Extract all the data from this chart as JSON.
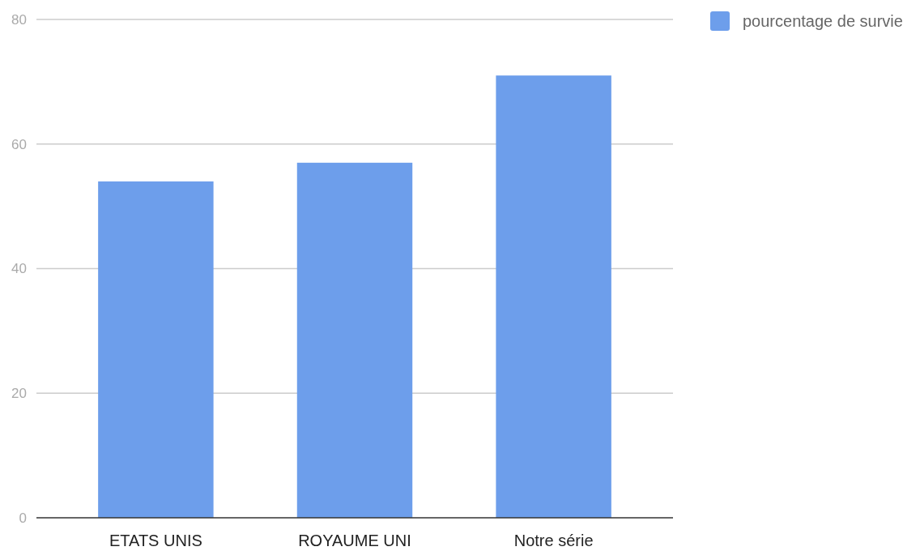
{
  "chart_data": {
    "type": "bar",
    "categories": [
      "ETATS UNIS",
      "ROYAUME UNI",
      "Notre série"
    ],
    "series": [
      {
        "name": "pourcentage de survie",
        "color": "#6d9eeb",
        "values": [
          54,
          57,
          71
        ]
      }
    ],
    "ylim": [
      0,
      80
    ],
    "yticks": [
      0,
      20,
      40,
      60,
      80
    ],
    "grid": "y",
    "legend": "top right"
  }
}
